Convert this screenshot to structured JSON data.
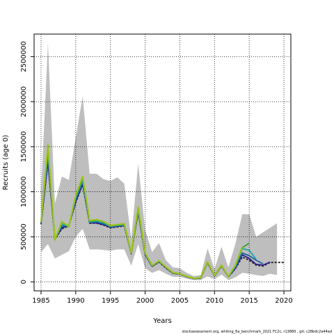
{
  "chart_data": {
    "type": "line",
    "xlabel": "Years",
    "ylabel": "Recruits (age 0)",
    "xlim": [
      1984,
      2021
    ],
    "ylim": [
      -100000,
      2750000
    ],
    "xticks": [
      1985,
      1990,
      1995,
      2000,
      2005,
      2010,
      2015,
      2020
    ],
    "yticks": [
      0,
      500000,
      1000000,
      1500000,
      2000000,
      2500000
    ],
    "ytick_labels": [
      "0",
      "500000",
      "1000000",
      "1500000",
      "2000000",
      "2500000"
    ],
    "grid": true,
    "grid_style": "dotted",
    "band": {
      "x": [
        1985,
        1986,
        1987,
        1988,
        1989,
        1990,
        1991,
        1992,
        1993,
        1994,
        1995,
        1996,
        1997,
        1998,
        1999,
        2000,
        2001,
        2002,
        2003,
        2004,
        2005,
        2006,
        2007,
        2008,
        2009,
        2010,
        2011,
        2012,
        2013,
        2014,
        2015,
        2016,
        2017,
        2018,
        2019
      ],
      "lower": [
        330000,
        420000,
        260000,
        300000,
        340000,
        500000,
        590000,
        360000,
        360000,
        355000,
        345000,
        360000,
        360000,
        180000,
        420000,
        150000,
        100000,
        130000,
        90000,
        55000,
        55000,
        35000,
        20000,
        20000,
        60000,
        30000,
        80000,
        20000,
        50000,
        100000,
        90000,
        75000,
        65000,
        90000,
        75000
      ],
      "upper": [
        1000000,
        2650000,
        870000,
        1170000,
        1130000,
        1600000,
        2060000,
        1200000,
        1200000,
        1140000,
        1120000,
        1160000,
        1090000,
        480000,
        1310000,
        580000,
        330000,
        430000,
        240000,
        160000,
        150000,
        100000,
        65000,
        75000,
        370000,
        140000,
        390000,
        160000,
        420000,
        750000,
        750000,
        500000,
        550000,
        600000,
        650000
      ]
    },
    "series": [
      {
        "color": "#1f1f1f",
        "dash": "3,2",
        "x": [
          1985,
          1986,
          1987,
          1988,
          1989,
          1990,
          1991,
          1992,
          1993,
          1994,
          1995,
          1996,
          1997,
          1998,
          1999,
          2000,
          2001,
          2002,
          2003,
          2004,
          2005,
          2006,
          2007,
          2008,
          2009,
          2010,
          2011,
          2012,
          2013,
          2014,
          2015,
          2016,
          2017,
          2018,
          2019,
          2020
        ],
        "values": [
          640000,
          1330000,
          470000,
          590000,
          620000,
          880000,
          1080000,
          650000,
          650000,
          630000,
          600000,
          610000,
          620000,
          310000,
          770000,
          300000,
          170000,
          220000,
          150000,
          95000,
          85000,
          55000,
          35000,
          40000,
          210000,
          65000,
          175000,
          55000,
          145000,
          275000,
          240000,
          185000,
          175000,
          215000,
          215000,
          215000
        ]
      },
      {
        "color": "#2d1b8f",
        "dash": "",
        "x": [
          1985,
          1986,
          1987,
          1988,
          1989,
          1990,
          1991,
          1992,
          1993,
          1994,
          1995,
          1996,
          1997,
          1998,
          1999,
          2000,
          2001,
          2002,
          2003,
          2004,
          2005,
          2006,
          2007,
          2008,
          2009,
          2010,
          2011,
          2012,
          2013,
          2014,
          2015,
          2016,
          2017,
          2018
        ],
        "values": [
          645000,
          1340000,
          475000,
          600000,
          625000,
          890000,
          1090000,
          655000,
          655000,
          635000,
          605000,
          615000,
          625000,
          315000,
          780000,
          305000,
          172000,
          225000,
          155000,
          97000,
          87000,
          57000,
          36000,
          42000,
          215000,
          67000,
          178000,
          57000,
          150000,
          300000,
          260000,
          195000,
          185000,
          220000
        ]
      },
      {
        "color": "#1d5fa0",
        "dash": "",
        "x": [
          1985,
          1986,
          1987,
          1988,
          1989,
          1990,
          1991,
          1992,
          1993,
          1994,
          1995,
          1996,
          1997,
          1998,
          1999,
          2000,
          2001,
          2002,
          2003,
          2004,
          2005,
          2006,
          2007,
          2008,
          2009,
          2010,
          2011,
          2012,
          2013,
          2014,
          2015,
          2016,
          2017
        ],
        "values": [
          650000,
          1400000,
          475000,
          620000,
          620000,
          910000,
          1110000,
          660000,
          665000,
          645000,
          610000,
          620000,
          630000,
          315000,
          790000,
          310000,
          175000,
          228000,
          158000,
          99000,
          88000,
          58000,
          37000,
          43000,
          218000,
          68000,
          180000,
          58000,
          160000,
          320000,
          290000,
          240000,
          200000
        ]
      },
      {
        "color": "#21a6a8",
        "dash": "",
        "x": [
          1985,
          1986,
          1987,
          1988,
          1989,
          1990,
          1991,
          1992,
          1993,
          1994,
          1995,
          1996,
          1997,
          1998,
          1999,
          2000,
          2001,
          2002,
          2003,
          2004,
          2005,
          2006,
          2007,
          2008,
          2009,
          2010,
          2011,
          2012,
          2013,
          2014,
          2015,
          2016
        ],
        "values": [
          655000,
          1450000,
          470000,
          640000,
          615000,
          930000,
          1130000,
          665000,
          675000,
          655000,
          615000,
          625000,
          635000,
          318000,
          800000,
          315000,
          178000,
          230000,
          160000,
          100000,
          89000,
          59000,
          38000,
          44000,
          220000,
          70000,
          183000,
          59000,
          170000,
          370000,
          350000,
          250000
        ]
      },
      {
        "color": "#2e9e3c",
        "dash": "",
        "x": [
          1985,
          1986,
          1987,
          1988,
          1989,
          1990,
          1991,
          1992,
          1993,
          1994,
          1995,
          1996,
          1997,
          1998,
          1999,
          2000,
          2001,
          2002,
          2003,
          2004,
          2005,
          2006,
          2007,
          2008,
          2009,
          2010,
          2011,
          2012,
          2013,
          2014,
          2015
        ],
        "values": [
          660000,
          1500000,
          465000,
          665000,
          610000,
          950000,
          1150000,
          670000,
          685000,
          665000,
          620000,
          630000,
          640000,
          320000,
          810000,
          320000,
          180000,
          232000,
          162000,
          101000,
          90000,
          60000,
          39000,
          45000,
          222000,
          71000,
          185000,
          60000,
          180000,
          380000,
          430000
        ]
      },
      {
        "color": "#9bc31b",
        "dash": "",
        "x": [
          1985,
          1986,
          1987,
          1988,
          1989,
          1990,
          1991,
          1992,
          1993,
          1994,
          1995,
          1996,
          1997,
          1998,
          1999,
          2000,
          2001,
          2002,
          2003,
          2004,
          2005,
          2006,
          2007,
          2008,
          2009,
          2010,
          2011,
          2012,
          2013,
          2014
        ],
        "values": [
          665000,
          1520000,
          465000,
          670000,
          615000,
          960000,
          1170000,
          680000,
          690000,
          670000,
          625000,
          635000,
          645000,
          322000,
          830000,
          323000,
          182000,
          234000,
          163000,
          102000,
          91000,
          61000,
          40000,
          46000,
          224000,
          72000,
          186000,
          61000,
          185000,
          390000
        ]
      }
    ]
  },
  "footer": "stockassessment.org,  whiting_6a_benchmark_2021 FC2c,  r13880 ,  git: c28bdc2a44ad"
}
